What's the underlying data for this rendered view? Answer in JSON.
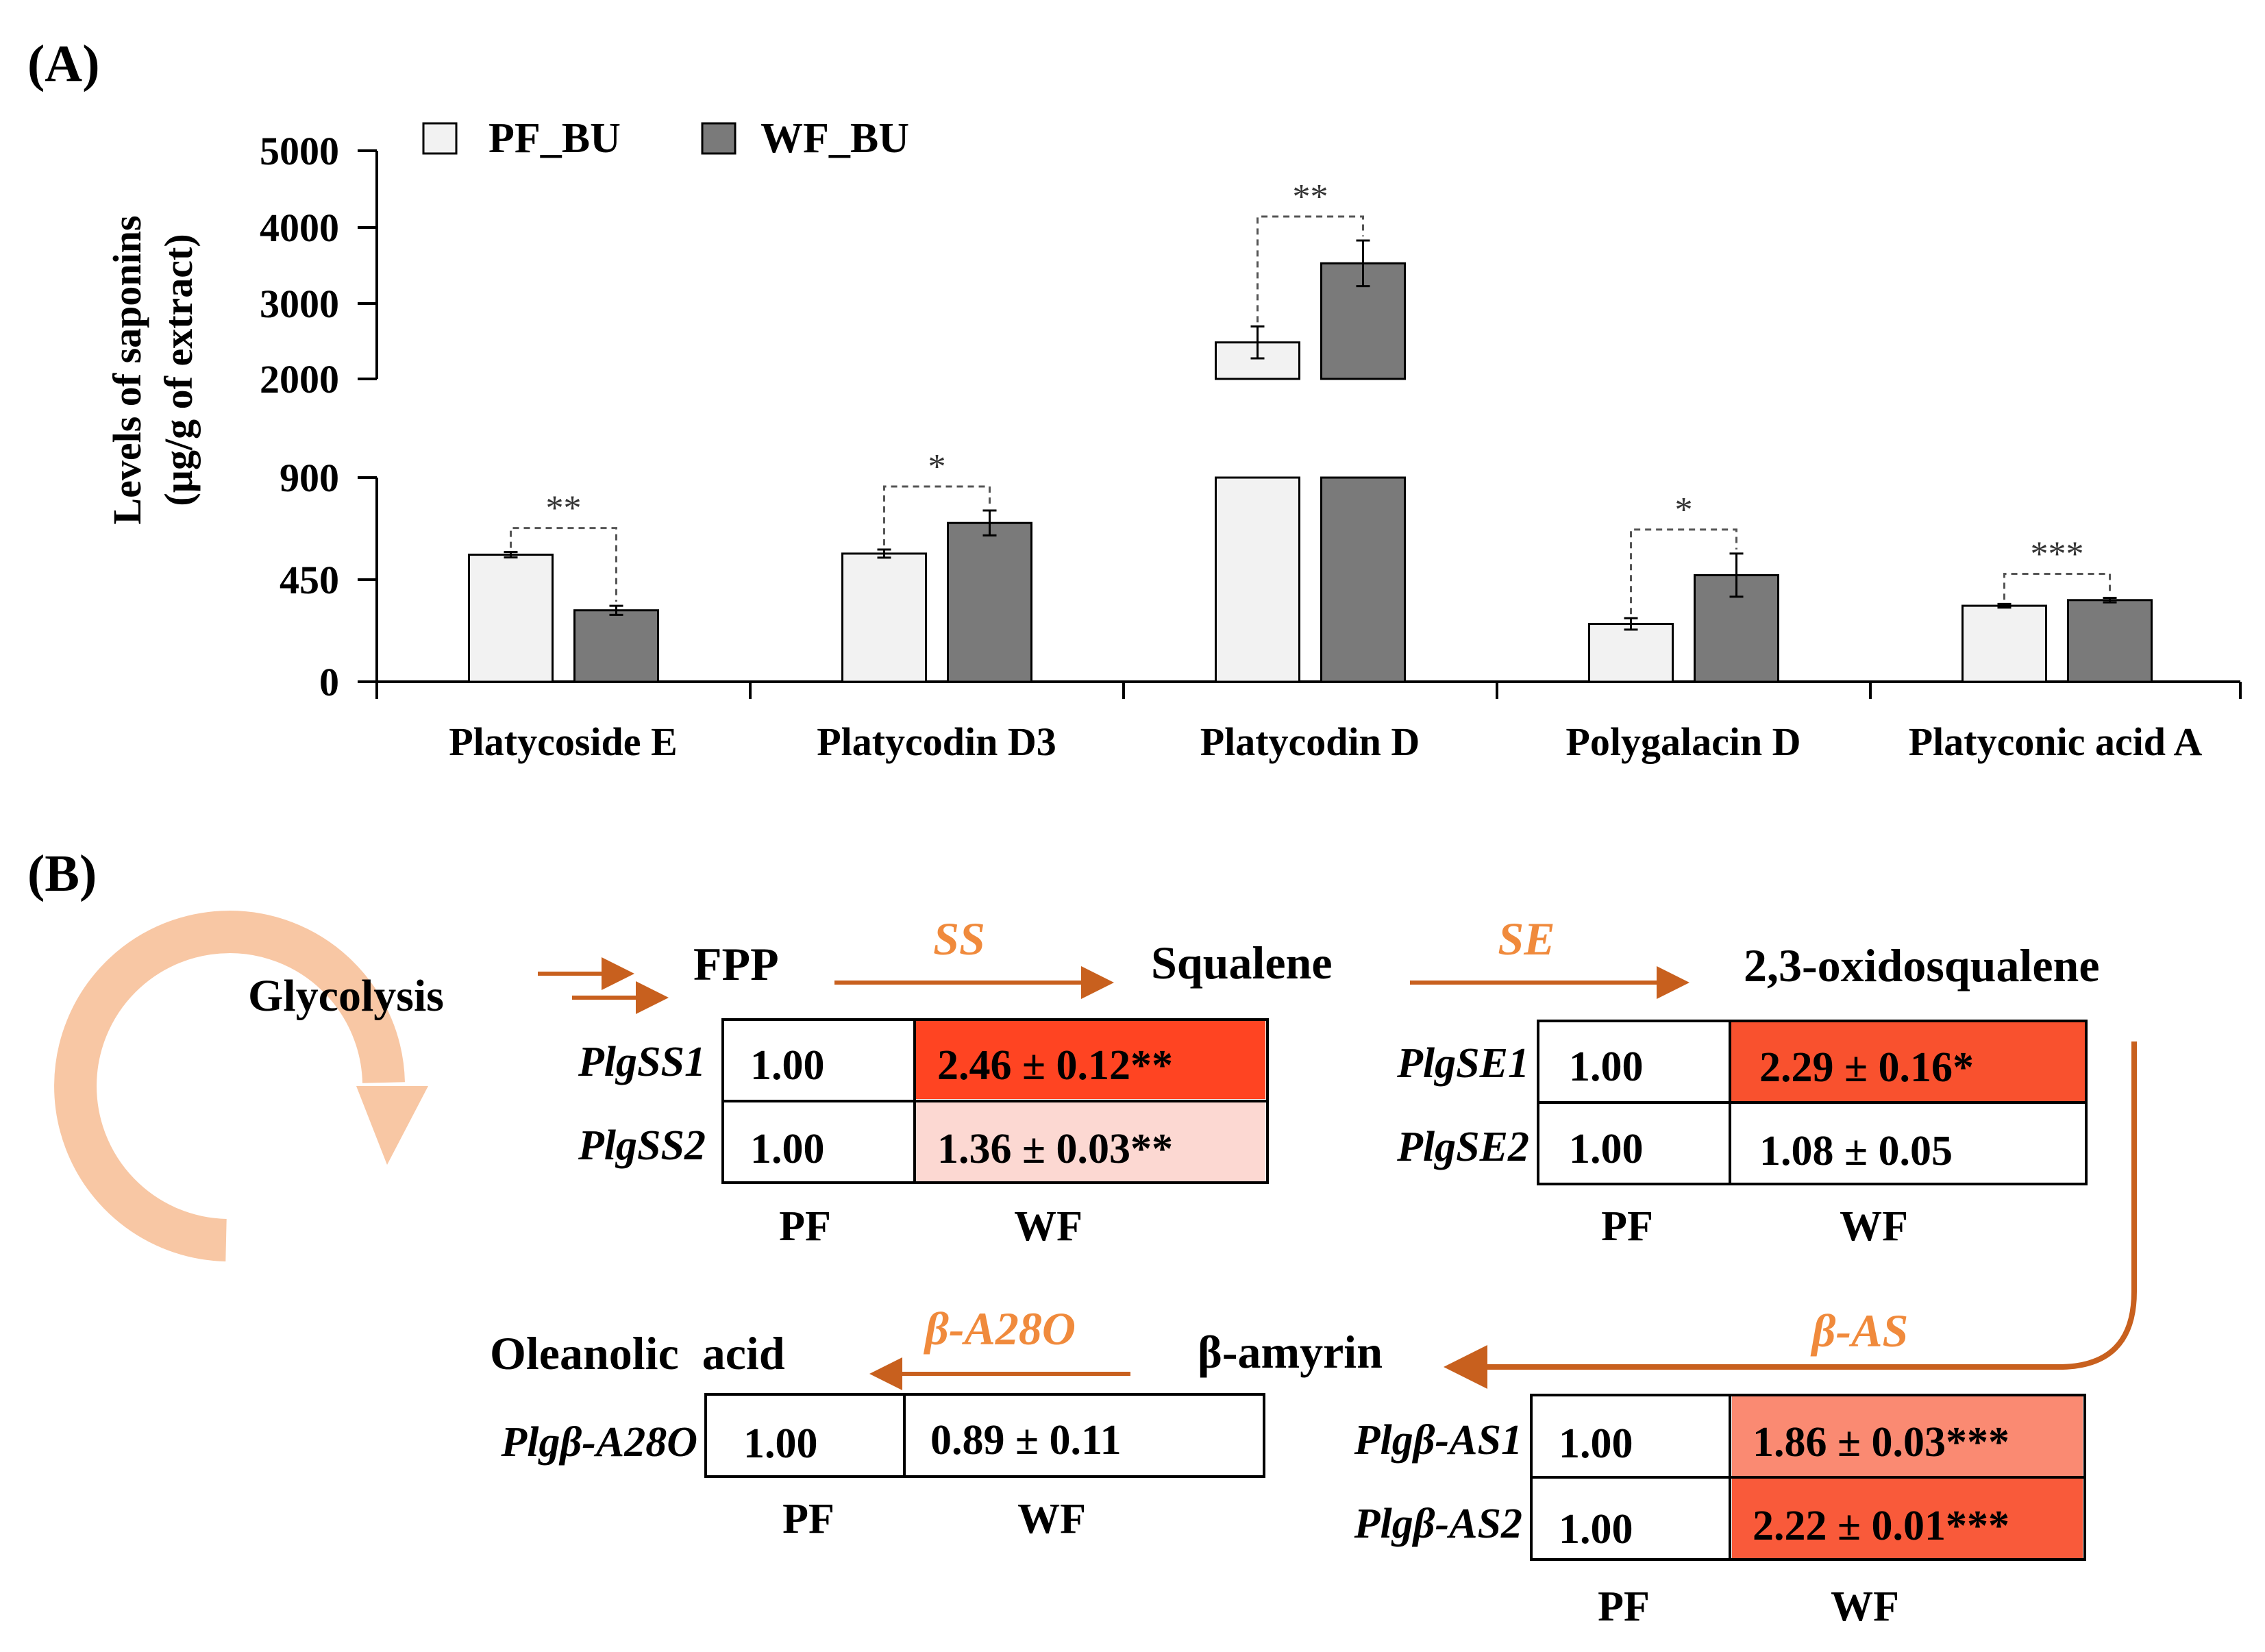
{
  "chart_data": {
    "type": "bar",
    "panel_label": "(A)",
    "ylabel": "Levels of saponins",
    "ylabel_units": "(µg/g of extract)",
    "axis_break": {
      "lower": [
        0,
        900
      ],
      "upper": [
        2000,
        5000
      ]
    },
    "lower_ticks": [
      "0",
      "450",
      "900"
    ],
    "upper_ticks": [
      "2000",
      "3000",
      "4000",
      "5000"
    ],
    "legend": [
      "PF_BU",
      "WF_BU"
    ],
    "colors": {
      "PF_BU": "#f2f2f2",
      "WF_BU": "#7a7a7a"
    },
    "categories": [
      "Platycoside E",
      "Platycodin D3",
      "Platycodin D",
      "Polygalacin D",
      "Platyconic acid A"
    ],
    "series": [
      {
        "name": "PF_BU",
        "values": [
          560,
          565,
          2480,
          255,
          335
        ],
        "errors": [
          12,
          18,
          210,
          25,
          8
        ]
      },
      {
        "name": "WF_BU",
        "values": [
          315,
          700,
          3520,
          470,
          360
        ],
        "errors": [
          20,
          55,
          300,
          95,
          10
        ]
      }
    ],
    "significance": [
      "**",
      "*",
      "**",
      "*",
      "***"
    ]
  },
  "pathway": {
    "panel_label": "(B)",
    "glycolysis": "Glycolysis",
    "fpp": "FPP",
    "squalene": "Squalene",
    "oxidosqualene": "2,3-oxidosqualene",
    "beta_amyrin": "β-amyrin",
    "oleanolic": "Oleanolic  acid",
    "enzymes": {
      "ss": "SS",
      "se": "SE",
      "bas": "β-AS",
      "ba28o": "β-A28O"
    },
    "col_pf": "PF",
    "col_wf": "WF",
    "ss_table": [
      {
        "gene": "PlgSS1",
        "pf": "1.00",
        "wf": "2.46 ± 0.12**",
        "color": "#ff4422"
      },
      {
        "gene": "PlgSS2",
        "pf": "1.00",
        "wf": "1.36 ± 0.03**",
        "color": "#fcd8d2"
      }
    ],
    "se_table": [
      {
        "gene": "PlgSE1",
        "pf": "1.00",
        "wf": "2.29 ± 0.16*",
        "color": "#f9512e"
      },
      {
        "gene": "PlgSE2",
        "pf": "1.00",
        "wf": "1.08 ± 0.05",
        "color": "#ffffff"
      }
    ],
    "bas_table": [
      {
        "gene": "Plgβ-AS1",
        "pf": "1.00",
        "wf": "1.86 ± 0.03***",
        "color": "#fa8a72"
      },
      {
        "gene": "Plgβ-AS2",
        "pf": "1.00",
        "wf": "2.22 ± 0.01***",
        "color": "#f95a3a"
      }
    ],
    "ba28o_table": [
      {
        "gene": "Plgβ-A28O",
        "pf": "1.00",
        "wf": "0.89 ± 0.11",
        "color": "#ffffff"
      }
    ]
  }
}
